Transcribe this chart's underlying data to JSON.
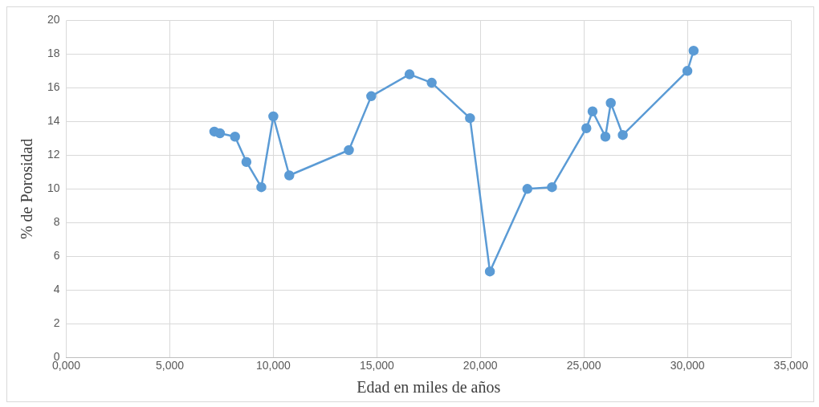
{
  "chart_data": {
    "type": "line",
    "xlabel": "Edad en miles de años",
    "ylabel": "% de Porosidad",
    "x": [
      7150,
      7420,
      8150,
      8700,
      9420,
      10000,
      10770,
      13650,
      14730,
      16580,
      17650,
      19500,
      20460,
      22270,
      23460,
      25120,
      25420,
      26040,
      26300,
      26880,
      30000,
      30300
    ],
    "series": [
      {
        "color": "#5b9bd5",
        "values": [
          13.4,
          13.3,
          13.1,
          11.6,
          10.1,
          14.3,
          10.8,
          12.3,
          15.5,
          16.8,
          16.3,
          14.2,
          5.1,
          10.0,
          10.1,
          13.6,
          14.6,
          13.1,
          15.1,
          13.2,
          17.0,
          18.2
        ]
      }
    ],
    "xlim": [
      0,
      35000
    ],
    "xticks": [
      {
        "value": 0,
        "label": "0,000"
      },
      {
        "value": 5000,
        "label": "5,000"
      },
      {
        "value": 10000,
        "label": "10,000"
      },
      {
        "value": 15000,
        "label": "15,000"
      },
      {
        "value": 20000,
        "label": "20,000"
      },
      {
        "value": 25000,
        "label": "25,000"
      },
      {
        "value": 30000,
        "label": "30,000"
      },
      {
        "value": 35000,
        "label": "35,000"
      }
    ],
    "ylim": [
      0,
      20
    ],
    "yticks": [
      0,
      2,
      4,
      6,
      8,
      10,
      12,
      14,
      16,
      18,
      20
    ],
    "grid": true,
    "legend": false,
    "marker": "circle",
    "line_style": "solid"
  }
}
